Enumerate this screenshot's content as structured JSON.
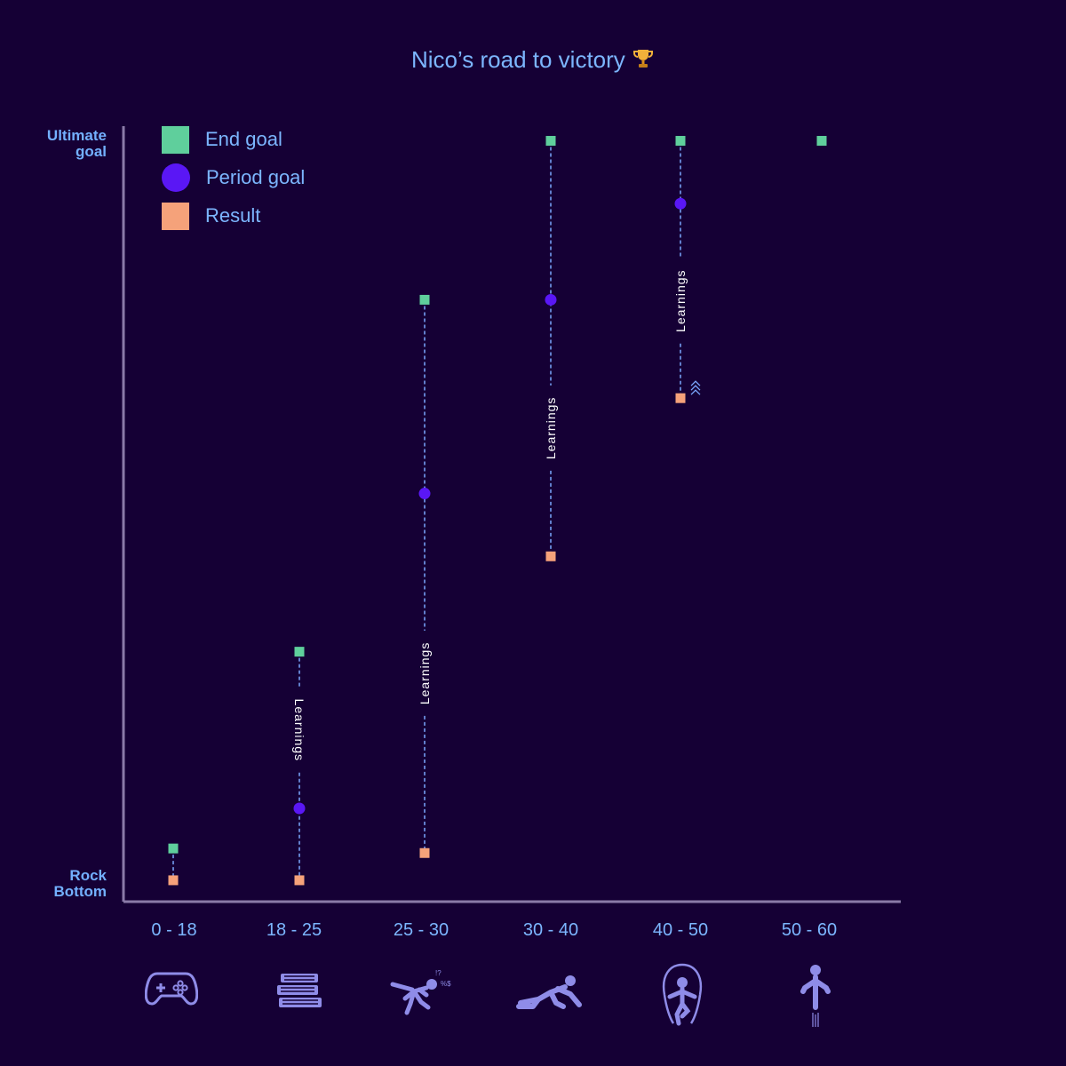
{
  "colors": {
    "background": "#150035",
    "end_goal": "#5fcf9c",
    "period_goal": "#5a17f5",
    "result": "#f5a27a",
    "line": "#7ba7ff",
    "axis": "#8a7aa8",
    "label": "#7cb6ff",
    "icon": "#8f8ce8"
  },
  "chart_data": {
    "type": "scatter",
    "title": "Nico’s road to victory",
    "title_icon": "trophy-icon",
    "y_axis": {
      "range": [
        0,
        100
      ],
      "top_label": "Ultimate goal",
      "bottom_label": "Rock Bottom"
    },
    "legend": [
      {
        "key": "end",
        "label": "End goal",
        "marker": "square"
      },
      {
        "key": "period",
        "label": "Period goal",
        "marker": "circle"
      },
      {
        "key": "result",
        "label": "Result",
        "marker": "square"
      }
    ],
    "connector_label": "Learnings",
    "categories": [
      "0 - 18",
      "18 - 25",
      "25 - 30",
      "30 - 40",
      "40 - 50",
      "50 - 60"
    ],
    "category_icons": [
      "gamepad-icon",
      "books-icon",
      "stumbling-person-icon",
      "crawling-person-icon",
      "jump-rope-person-icon",
      "launching-person-icon"
    ],
    "series": [
      {
        "name": "End goal",
        "values": [
          5.5,
          31.5,
          78,
          99,
          99,
          99
        ]
      },
      {
        "name": "Period goal",
        "values": [
          null,
          10.8,
          52.4,
          78,
          90.7,
          null
        ]
      },
      {
        "name": "Result",
        "values": [
          1.3,
          1.3,
          4.9,
          44.1,
          65,
          null
        ]
      }
    ],
    "learnings_shown": [
      false,
      true,
      true,
      true,
      true,
      false
    ],
    "improving_marker": [
      false,
      false,
      false,
      false,
      true,
      false
    ]
  }
}
